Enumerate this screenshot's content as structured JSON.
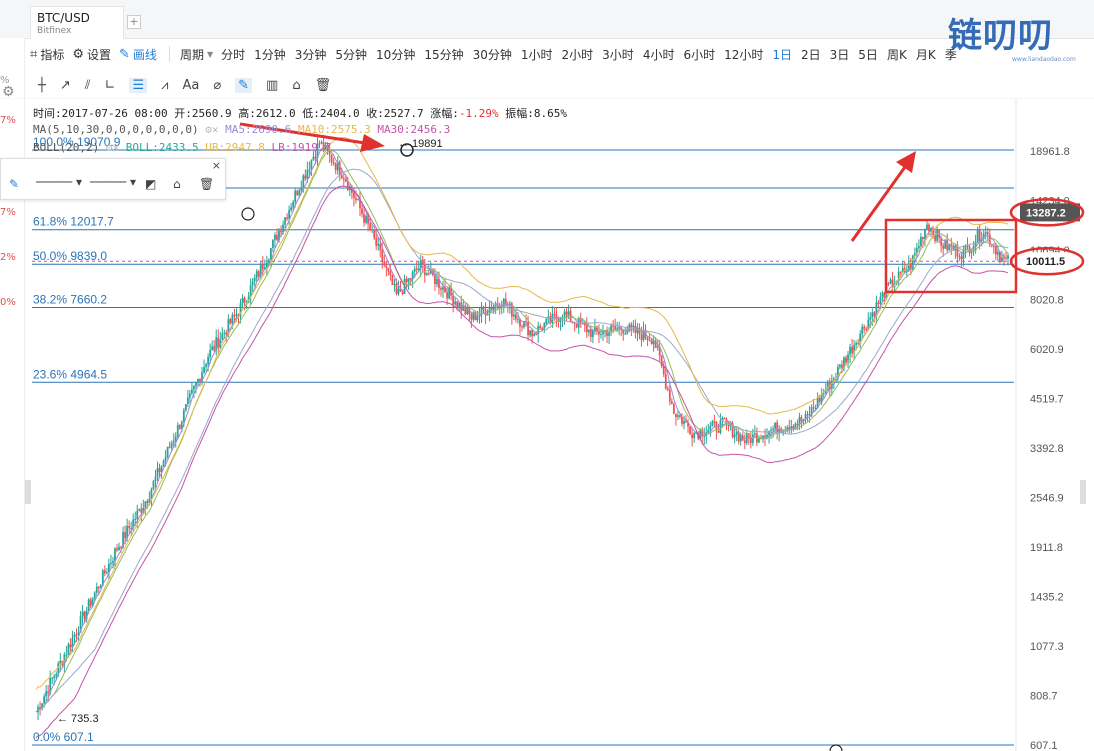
{
  "tab": {
    "symbol": "BTC/USD",
    "exchange": "Bitfinex",
    "add_label": "+"
  },
  "logo": {
    "text": "链叨叨",
    "url": "www.liandaodao.com"
  },
  "toolbar": {
    "indicator_label": "指标",
    "settings_label": "设置",
    "draw_label": "画线",
    "period_label": "周期",
    "periods": [
      "分时",
      "1分钟",
      "3分钟",
      "5分钟",
      "10分钟",
      "15分钟",
      "30分钟",
      "1小时",
      "2小时",
      "3小时",
      "4小时",
      "6小时",
      "12小时",
      "1日",
      "2日",
      "3日",
      "5日",
      "周K",
      "月K",
      "季"
    ],
    "selected_period": "1日"
  },
  "draw_tools": [
    "┼",
    "↗",
    "⫽",
    "∟",
    "☰",
    "⩘",
    "Aa",
    "⌀",
    "✎",
    "▥",
    "⌂",
    "🗑"
  ],
  "left_pcts": [
    "7%",
    "%",
    "7%",
    "2%",
    "0%"
  ],
  "info": {
    "time_label": "时间:",
    "time": "2017-07-26 08:00",
    "open_label": "开:",
    "open": "2560.9",
    "high_label": "高:",
    "high": "2612.0",
    "low_label": "低:",
    "low": "2404.0",
    "close_label": "收:",
    "close": "2527.7",
    "change_label": "涨幅:",
    "change": "-1.29%",
    "amp_label": "振幅:",
    "amp": "8.65%"
  },
  "ma": {
    "label": "MA(5,10,30,0,0,0,0,0,0,0)",
    "ma5": "MA5:2690.6",
    "ma10": "MA10:2575.3",
    "ma30": "MA30:2456.3"
  },
  "boll": {
    "label": "BOLL(20,2)",
    "mid": "BOLL:2433.5",
    "ub": "UB:2947.8",
    "lb": "LB:1919.7"
  },
  "colors": {
    "ma5": "#9b8ad8",
    "ma10": "#e8b84a",
    "ma30": "#c453a8",
    "up": "#26a69a",
    "down": "#ef5350",
    "fib": "#1f7cd1",
    "annot": "#e0312f"
  },
  "chart_data": {
    "type": "candlestick",
    "y_scale": "log",
    "ylim": [
      600,
      24000
    ],
    "y_ticks": [
      "18961.8",
      "14234.0",
      "10694.0",
      "8020.8",
      "6020.9",
      "4519.7",
      "3392.8",
      "2546.9",
      "1911.8",
      "1435.2",
      "1077.3",
      "808.7",
      "607.1"
    ],
    "y_tick_values": [
      18961.8,
      14234.0,
      10694.0,
      8020.8,
      6020.9,
      4519.7,
      3392.8,
      2546.9,
      1911.8,
      1435.2,
      1077.3,
      808.7,
      607.1
    ],
    "fibonacci": [
      {
        "label": "100.0% 19070.9",
        "value": 19070.9
      },
      {
        "label": "",
        "value": 15300
      },
      {
        "label": "61.8% 12017.7",
        "value": 12017.7
      },
      {
        "label": "50.0% 9839.0",
        "value": 9839.0
      },
      {
        "label": "38.2% 7660.2",
        "value": 7660.2
      },
      {
        "label": "23.6% 4964.5",
        "value": 4964.5
      },
      {
        "label": "0.0% 607.1",
        "value": 607.1
      }
    ],
    "price_labels": {
      "current": "13287.2",
      "current_value": 13287.2,
      "second": "10011.5",
      "second_value": 10011.5
    },
    "annotations": {
      "high": "19891",
      "high_value": 19891,
      "low": "735.3",
      "low_value": 735.3
    },
    "trend_keypoints": [
      [
        0,
        735
      ],
      [
        20,
        1180
      ],
      [
        40,
        1900
      ],
      [
        55,
        2550
      ],
      [
        70,
        3800
      ],
      [
        85,
        5800
      ],
      [
        100,
        7500
      ],
      [
        115,
        10500
      ],
      [
        130,
        15500
      ],
      [
        140,
        19891
      ],
      [
        152,
        16500
      ],
      [
        165,
        12000
      ],
      [
        178,
        8200
      ],
      [
        190,
        9800
      ],
      [
        205,
        8200
      ],
      [
        215,
        7200
      ],
      [
        230,
        8000
      ],
      [
        245,
        6600
      ],
      [
        260,
        7400
      ],
      [
        275,
        6600
      ],
      [
        290,
        6800
      ],
      [
        305,
        6400
      ],
      [
        315,
        4200
      ],
      [
        325,
        3700
      ],
      [
        340,
        3900
      ],
      [
        350,
        3550
      ],
      [
        365,
        3800
      ],
      [
        380,
        4000
      ],
      [
        395,
        5200
      ],
      [
        410,
        7000
      ],
      [
        420,
        8500
      ],
      [
        432,
        9800
      ],
      [
        440,
        12500
      ],
      [
        448,
        11000
      ],
      [
        458,
        10500
      ],
      [
        468,
        12000
      ],
      [
        478,
        10000
      ]
    ]
  }
}
